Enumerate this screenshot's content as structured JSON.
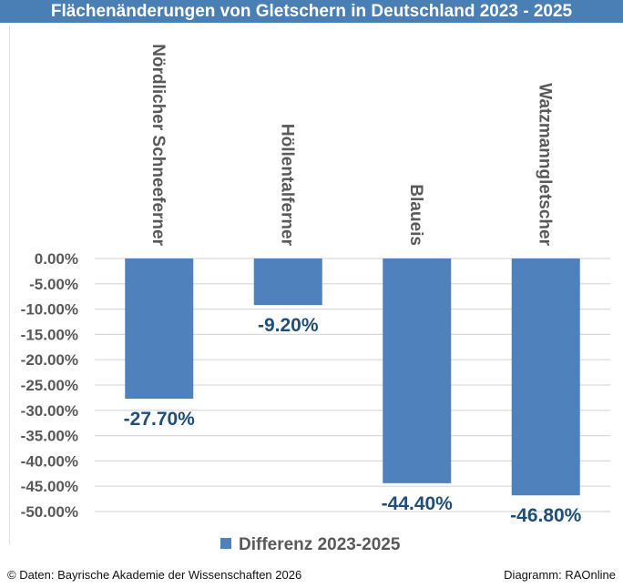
{
  "header": {
    "title": "Flächenänderungen von Gletschern in Deutschland 2023 - 2025"
  },
  "footer": {
    "source": "© Daten: Bayrische Akademie der Wissenschaften 2026",
    "credit": "Diagramm: RAOnline"
  },
  "colors": {
    "bar": "#4f81bd",
    "label": "#1f4e79",
    "axis_text": "#595959",
    "grid": "#d9d9d9",
    "title_bg": "#4a7fb5"
  },
  "chart_data": {
    "type": "bar",
    "title": "Flächenänderungen von Gletschern in Deutschland 2023 - 2025",
    "categories": [
      "Nördlicher Schneeferner",
      "Höllentalferner",
      "Blaueis",
      "Watzmanngletscher"
    ],
    "series": [
      {
        "name": "Differenz 2023-2025",
        "values": [
          -27.7,
          -9.2,
          -44.4,
          -46.8
        ]
      }
    ],
    "data_labels": [
      "-27.70%",
      "-9.20%",
      "-44.40%",
      "-46.80%"
    ],
    "yticks": [
      "0.00%",
      "-5.00%",
      "-10.00%",
      "-15.00%",
      "-20.00%",
      "-25.00%",
      "-30.00%",
      "-35.00%",
      "-40.00%",
      "-45.00%",
      "-50.00%"
    ],
    "ytick_values": [
      0,
      -5,
      -10,
      -15,
      -20,
      -25,
      -30,
      -35,
      -40,
      -45,
      -50
    ],
    "ylim": [
      -50,
      0
    ],
    "xlabel": "",
    "ylabel": "",
    "grid": true,
    "legend": {
      "position": "bottom",
      "entries": [
        "Differenz 2023-2025"
      ]
    }
  }
}
